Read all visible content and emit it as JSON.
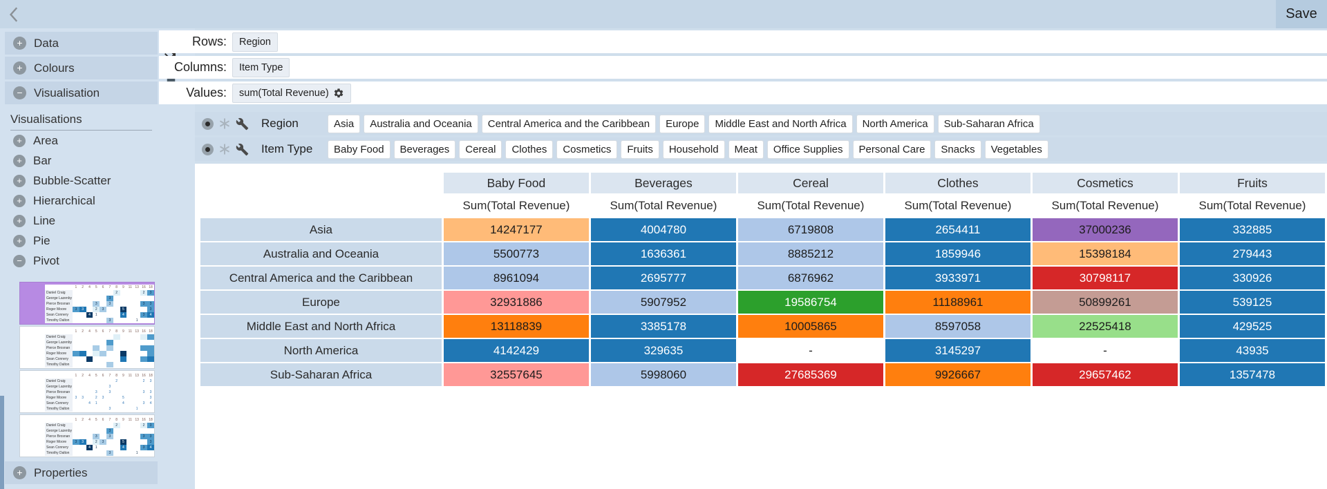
{
  "top_bar": {
    "save_label": "Save"
  },
  "sidebar": {
    "sections": [
      {
        "label": "Data",
        "icon": "+"
      },
      {
        "label": "Colours",
        "icon": "+"
      },
      {
        "label": "Visualisation",
        "icon": "−"
      }
    ],
    "visualisations_title": "Visualisations",
    "chart_types": [
      {
        "label": "Area",
        "icon": "+"
      },
      {
        "label": "Bar",
        "icon": "+"
      },
      {
        "label": "Bubble-Scatter",
        "icon": "+"
      },
      {
        "label": "Hierarchical",
        "icon": "+"
      },
      {
        "label": "Line",
        "icon": "+"
      },
      {
        "label": "Pie",
        "icon": "+"
      },
      {
        "label": "Pivot",
        "icon": "−"
      }
    ],
    "properties": {
      "label": "Properties",
      "icon": "+"
    },
    "thumbnails": {
      "row_labels": [
        "Daniel Craig",
        "George Lazenby",
        "Pierce Brosnan",
        "Roger Moore",
        "Sean Connery",
        "Timothy Dalton"
      ],
      "col_labels": [
        "1",
        "2",
        "4",
        "5",
        "6",
        "7",
        "8",
        "9",
        "11",
        "13",
        "16",
        "18"
      ],
      "shades": {
        "0": "#ffffff",
        "1": "#dff0f7",
        "2": "#a8cce6",
        "3": "#4f9bcb",
        "4": "#1f77b4",
        "5": "#0b3a66"
      },
      "cells": [
        [
          0,
          6,
          "2",
          "1"
        ],
        [
          0,
          10,
          "2",
          "1"
        ],
        [
          0,
          11,
          "3",
          "3"
        ],
        [
          1,
          5,
          "3",
          "3"
        ],
        [
          2,
          3,
          "3",
          "2"
        ],
        [
          2,
          5,
          "3",
          "2"
        ],
        [
          2,
          10,
          "3",
          "3"
        ],
        [
          2,
          11,
          "3",
          "3"
        ],
        [
          3,
          0,
          "3",
          "3"
        ],
        [
          3,
          1,
          "3",
          "4"
        ],
        [
          3,
          3,
          "2",
          "1"
        ],
        [
          3,
          4,
          "3",
          "2"
        ],
        [
          3,
          7,
          "5",
          "5"
        ],
        [
          3,
          11,
          "3",
          "3"
        ],
        [
          4,
          2,
          "4",
          "5"
        ],
        [
          4,
          3,
          "1",
          "0"
        ],
        [
          4,
          7,
          "4",
          "4"
        ],
        [
          4,
          10,
          "3",
          "3"
        ],
        [
          4,
          11,
          "4",
          "4"
        ],
        [
          5,
          5,
          "3",
          "2"
        ],
        [
          5,
          9,
          "1",
          "0"
        ]
      ],
      "variants": [
        {
          "selected": true,
          "fills": true,
          "numbers": true,
          "blue_numbers": false
        },
        {
          "selected": false,
          "fills": true,
          "numbers": false,
          "blue_numbers": false
        },
        {
          "selected": false,
          "fills": false,
          "numbers": true,
          "blue_numbers": true
        },
        {
          "selected": false,
          "fills": true,
          "numbers": true,
          "blue_numbers": false
        }
      ]
    }
  },
  "config": {
    "rows_label": "Rows:",
    "rows_value": "Region",
    "columns_label": "Columns:",
    "columns_value": "Item Type",
    "values_label": "Values:",
    "values_value": "sum(Total Revenue)"
  },
  "filters": [
    {
      "name": "Region",
      "chips": [
        "Asia",
        "Australia and Oceania",
        "Central America and the Caribbean",
        "Europe",
        "Middle East and North Africa",
        "North America",
        "Sub-Saharan Africa"
      ]
    },
    {
      "name": "Item Type",
      "chips": [
        "Baby Food",
        "Beverages",
        "Cereal",
        "Clothes",
        "Cosmetics",
        "Fruits",
        "Household",
        "Meat",
        "Office Supplies",
        "Personal Care",
        "Snacks",
        "Vegetables"
      ]
    }
  ],
  "palette": {
    "b": {
      "bg": "#2077b4",
      "fg": "#ffffff"
    },
    "lb": {
      "bg": "#aec7e8",
      "fg": "#1c1c1c"
    },
    "o": {
      "bg": "#ff7f0e",
      "fg": "#1c1c1c"
    },
    "lo": {
      "bg": "#ffbb78",
      "fg": "#1c1c1c"
    },
    "g": {
      "bg": "#2ca02c",
      "fg": "#ffffff"
    },
    "lg": {
      "bg": "#98df8a",
      "fg": "#1c1c1c"
    },
    "r": {
      "bg": "#d62728",
      "fg": "#ffffff"
    },
    "sa": {
      "bg": "#ff9896",
      "fg": "#1c1c1c"
    },
    "p": {
      "bg": "#9467bd",
      "fg": "#1c1c1c"
    },
    "br": {
      "bg": "#c49c94",
      "fg": "#1c1c1c"
    },
    "w": {
      "bg": "#ffffff",
      "fg": "#1c1c1c"
    }
  },
  "pivot": {
    "measure": "Sum(Total Revenue)",
    "columns": [
      "Baby Food",
      "Beverages",
      "Cereal",
      "Clothes",
      "Cosmetics",
      "Fruits"
    ],
    "rows": [
      {
        "label": "Asia",
        "cells": [
          [
            "14247177",
            "lo"
          ],
          [
            "4004780",
            "b"
          ],
          [
            "6719808",
            "lb"
          ],
          [
            "2654411",
            "b"
          ],
          [
            "37000236",
            "p"
          ],
          [
            "332885",
            "b"
          ]
        ]
      },
      {
        "label": "Australia and Oceania",
        "cells": [
          [
            "5500773",
            "lb"
          ],
          [
            "1636361",
            "b"
          ],
          [
            "8885212",
            "lb"
          ],
          [
            "1859946",
            "b"
          ],
          [
            "15398184",
            "lo"
          ],
          [
            "279443",
            "b"
          ]
        ]
      },
      {
        "label": "Central America and the Caribbean",
        "cells": [
          [
            "8961094",
            "lb"
          ],
          [
            "2695777",
            "b"
          ],
          [
            "6876962",
            "lb"
          ],
          [
            "3933971",
            "b"
          ],
          [
            "30798117",
            "r"
          ],
          [
            "330926",
            "b"
          ]
        ]
      },
      {
        "label": "Europe",
        "cells": [
          [
            "32931886",
            "sa"
          ],
          [
            "5907952",
            "lb"
          ],
          [
            "19586754",
            "g"
          ],
          [
            "11188961",
            "o"
          ],
          [
            "50899261",
            "br"
          ],
          [
            "539125",
            "b"
          ]
        ]
      },
      {
        "label": "Middle East and North Africa",
        "cells": [
          [
            "13118839",
            "o"
          ],
          [
            "3385178",
            "b"
          ],
          [
            "10005865",
            "o"
          ],
          [
            "8597058",
            "lb"
          ],
          [
            "22525418",
            "lg"
          ],
          [
            "429525",
            "b"
          ]
        ]
      },
      {
        "label": "North America",
        "cells": [
          [
            "4142429",
            "b"
          ],
          [
            "329635",
            "b"
          ],
          [
            "-",
            "w"
          ],
          [
            "3145297",
            "b"
          ],
          [
            "-",
            "w"
          ],
          [
            "43935",
            "b"
          ]
        ]
      },
      {
        "label": "Sub-Saharan Africa",
        "cells": [
          [
            "32557645",
            "sa"
          ],
          [
            "5998060",
            "lb"
          ],
          [
            "27685369",
            "r"
          ],
          [
            "9926667",
            "o"
          ],
          [
            "29657462",
            "r"
          ],
          [
            "1357478",
            "b"
          ]
        ]
      }
    ]
  }
}
